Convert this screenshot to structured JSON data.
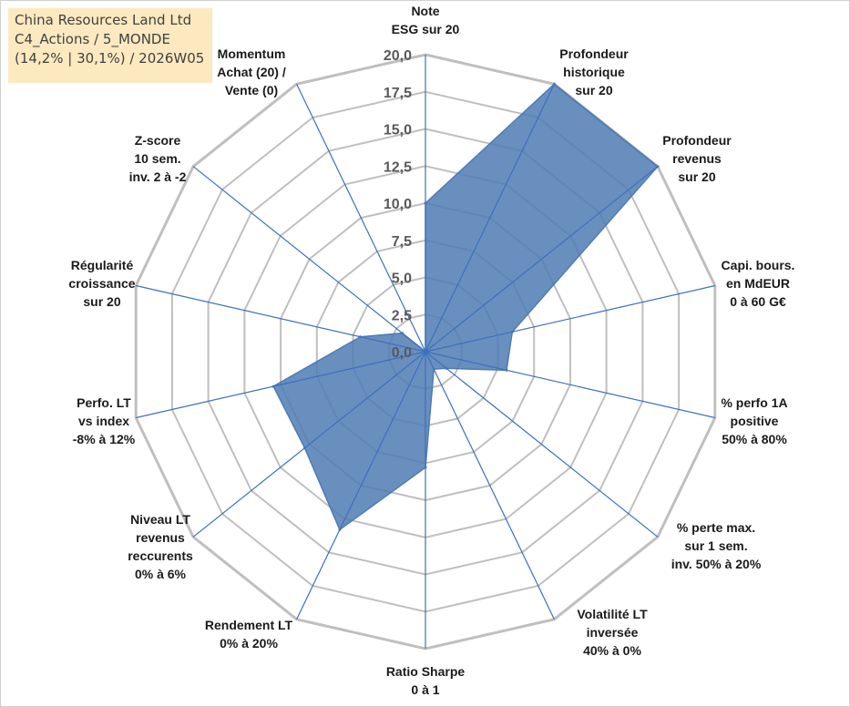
{
  "header": {
    "line1": "China Resources Land Ltd",
    "line2": "C4_Actions / 5_MONDE",
    "line3": "(14,2% | 30,1%) / 2026W05"
  },
  "colors": {
    "series_fill": "#4f7bb4",
    "series_stroke": "#4f7bb4",
    "grid": "#bfbfbf",
    "spoke": "#3d6fbf",
    "title_bg": "#fde9c0"
  },
  "chart_data": {
    "type": "radar",
    "title": "",
    "rlim": [
      0,
      20
    ],
    "ticks": [
      "0,0",
      "2,5",
      "5,0",
      "7,5",
      "10,0",
      "12,5",
      "15,0",
      "17,5",
      "20,0"
    ],
    "tick_values": [
      0,
      2.5,
      5,
      7.5,
      10,
      12.5,
      15,
      17.5,
      20
    ],
    "grid": true,
    "legend": "none",
    "categories": [
      [
        "Note",
        "ESG sur 20"
      ],
      [
        "Profondeur",
        "historique",
        "sur 20"
      ],
      [
        "Profondeur",
        "revenus",
        "sur 20"
      ],
      [
        "Capi. bours.",
        "en MdEUR",
        "0 à 60 G€"
      ],
      [
        "% perfo 1A",
        "positive",
        "50% à 80%"
      ],
      [
        "% perte max.",
        "sur 1 sem.",
        "inv. 50% à 20%"
      ],
      [
        "Volatilité LT",
        "inversée",
        "40% à 0%"
      ],
      [
        "Ratio Sharpe",
        "0 à 1"
      ],
      [
        "Rendement LT",
        "0% à 20%"
      ],
      [
        "Niveau LT",
        "revenus",
        "reccurents",
        "0% à 6%"
      ],
      [
        "Perfo. LT",
        "vs index",
        "-8% à 12%"
      ],
      [
        "Régularité",
        "croissance",
        "sur 20"
      ],
      [
        "Z-score",
        "10 sem.",
        "inv. 2 à -2"
      ],
      [
        "Momentum",
        "Achat (20) /",
        "Vente (0)"
      ]
    ],
    "series": [
      {
        "values": [
          10,
          20,
          20,
          6,
          5.6,
          1.8,
          1.3,
          7.8,
          13.3,
          10.4,
          10.5,
          4.5,
          2.0,
          0
        ]
      }
    ]
  }
}
